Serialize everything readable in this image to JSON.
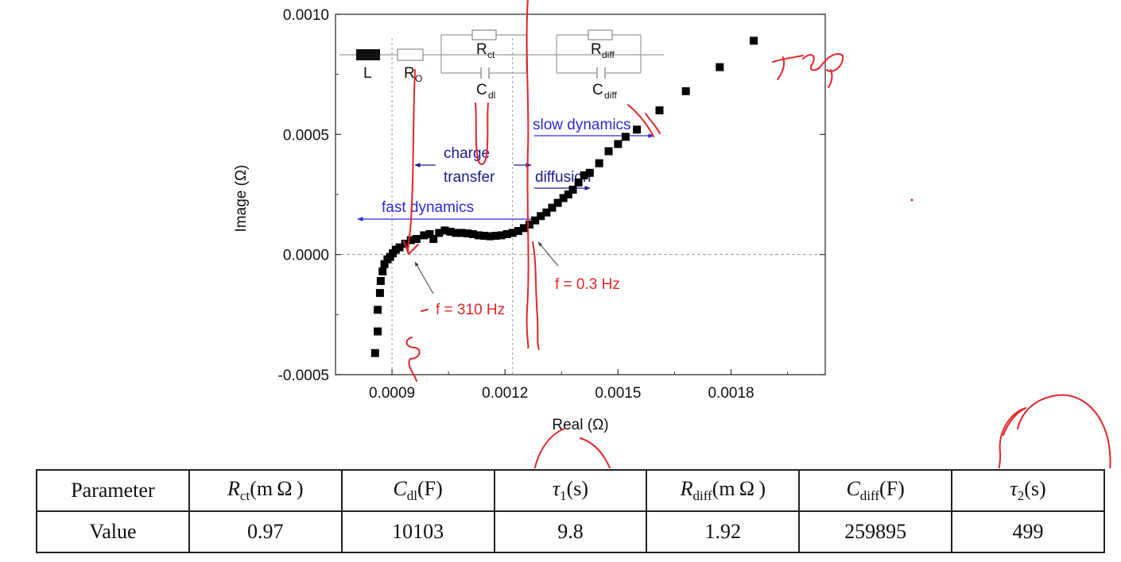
{
  "chart_data": {
    "type": "scatter",
    "title": "",
    "xlabel": "Real (Ω)",
    "ylabel": "Image (Ω)",
    "xlim": [
      0.00075,
      0.00205
    ],
    "ylim": [
      -0.0005,
      0.001
    ],
    "x_ticks": [
      "0.0009",
      "0.0012",
      "0.0015",
      "0.0018"
    ],
    "x_tick_values": [
      0.0009,
      0.0012,
      0.0015,
      0.0018
    ],
    "y_ticks": [
      "-0.0005",
      "0.0000",
      "0.0005",
      "0.0010"
    ],
    "y_tick_values": [
      -0.0005,
      0.0,
      0.0005,
      0.001
    ],
    "marker": "square",
    "marker_color": "#000000",
    "reference_lines": {
      "y": 0.0,
      "x": [
        0.0009,
        0.00122
      ]
    },
    "series": [
      {
        "x": [
          0.000855,
          0.000862,
          0.000862,
          0.000868,
          0.00087,
          0.000875,
          0.00088,
          0.000888,
          0.000895,
          0.000902,
          0.00091,
          0.00092,
          0.000935,
          0.00095,
          0.000965,
          0.000985,
          0.001,
          0.00101,
          0.001025,
          0.00104,
          0.001055,
          0.00107,
          0.001085,
          0.0011,
          0.001115,
          0.00113,
          0.001145,
          0.00116,
          0.001175,
          0.00119,
          0.001205,
          0.00122,
          0.001235,
          0.00125,
          0.001265,
          0.00128,
          0.001295,
          0.00131,
          0.001325,
          0.00134,
          0.001355,
          0.001368,
          0.00138,
          0.001395,
          0.00141,
          0.001425,
          0.00145,
          0.001475,
          0.0015,
          0.00152,
          0.00155,
          0.00161,
          0.00168,
          0.00177,
          0.00186
        ],
        "y": [
          -0.00041,
          -0.00032,
          -0.00023,
          -0.00016,
          -0.00011,
          -7e-05,
          -4e-05,
          -2e-05,
          -1e-05,
          5e-06,
          2e-05,
          3e-05,
          4.5e-05,
          6e-05,
          6.5e-05,
          8e-05,
          8.5e-05,
          6.5e-05,
          9e-05,
          0.0001,
          9.5e-05,
          9e-05,
          9e-05,
          8.8e-05,
          8.5e-05,
          8e-05,
          7.8e-05,
          7.6e-05,
          7.8e-05,
          8e-05,
          8.5e-05,
          9e-05,
          9.8e-05,
          0.00011,
          0.000125,
          0.000142,
          0.00016,
          0.000175,
          0.000195,
          0.000215,
          0.000235,
          0.00025,
          0.00027,
          0.0003,
          0.00033,
          0.00034,
          0.00038,
          0.00043,
          0.00046,
          0.00049,
          0.00052,
          0.0006,
          0.00068,
          0.00078,
          0.00089
        ]
      }
    ],
    "circuit_labels": [
      "L",
      "R",
      "O",
      "R",
      "ct",
      "C",
      "dl",
      "R",
      "diff",
      "C",
      "diff"
    ],
    "annotations": {
      "slow_dynamics": "slow dynamics",
      "charge": "charge",
      "transfer": "transfer",
      "diffusion": "diffusion",
      "fast_dynamics": "fast dynamics",
      "f1": "f = 310 Hz",
      "f2": "f = 0.3 Hz"
    },
    "colors": {
      "annotation_blue": "#2b2bd6",
      "annotation_navy": "#1b1b8a",
      "frequency_red": "#e0262a",
      "ink": "#e0262a"
    }
  },
  "table": {
    "header": {
      "c0": "Parameter",
      "c1_sym": "R",
      "c1_sub": "ct",
      "c1_unit": "(m Ω )",
      "c2_sym": "C",
      "c2_sub": "dl",
      "c2_unit": "(F)",
      "c3_sym": "τ",
      "c3_sub": "1",
      "c3_unit": "(s)",
      "c4_sym": "R",
      "c4_sub": "diff",
      "c4_unit": "(m Ω )",
      "c5_sym": "C",
      "c5_sub": "diff",
      "c5_unit": "(F)",
      "c6_sym": "τ",
      "c6_sub": "2",
      "c6_unit": "(s)"
    },
    "values": [
      "Value",
      "0.97",
      "10103",
      "9.8",
      "1.92",
      "259895",
      "499"
    ]
  }
}
